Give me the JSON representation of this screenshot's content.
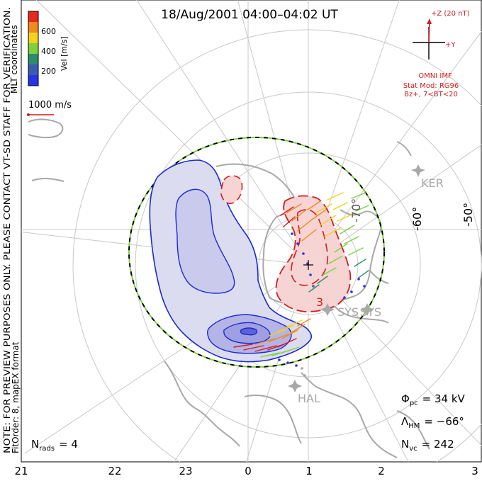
{
  "title": "18/Aug/2001 04:00–04:02 UT",
  "side_note": {
    "line1": "NOTE: FOR PREVIEW PURPOSES ONLY. PLEASE CONTACT VT-SD STAFF FOR VERIFICATION.",
    "line2": "FitOrder: 8, mapEX format"
  },
  "coord_label": "MLT coordinates",
  "colorbar": {
    "title": "Vel [m/s]",
    "ticks": [
      "600",
      "400",
      "200"
    ],
    "colors": [
      "#e8281e",
      "#f08a1c",
      "#f2d21e",
      "#7fd23c",
      "#2e8c6e",
      "#3c5ab4",
      "#2832e6"
    ]
  },
  "vector_scale": {
    "label": "1000 m/s"
  },
  "imf": {
    "z_label": "+Z (20 nT)",
    "y_label": "+Y",
    "source": "OMNI IMF",
    "model_line1": "Stat Mod: RG96",
    "model_line2": "Bz+, 7<BT<20",
    "color": "#d21e1e"
  },
  "lat_labels": [
    "-70°",
    "-60°",
    "-50°"
  ],
  "stations": [
    "KER",
    "SYS",
    "SYS",
    "HAL"
  ],
  "mlt_labels": [
    "21",
    "22",
    "23",
    "0",
    "1",
    "2",
    "3"
  ],
  "stats": {
    "phi_pc": "Φ",
    "phi_sub": "pc",
    "phi_val": "= 34 kV",
    "lambda": "Λ",
    "lambda_sub": "HM",
    "lambda_val": "= −66°",
    "nvc": "N",
    "nvc_sub": "vc",
    "nvc_val": "= 242",
    "nrads": "N",
    "nrads_sub": "rads",
    "nrads_val": "= 4"
  }
}
